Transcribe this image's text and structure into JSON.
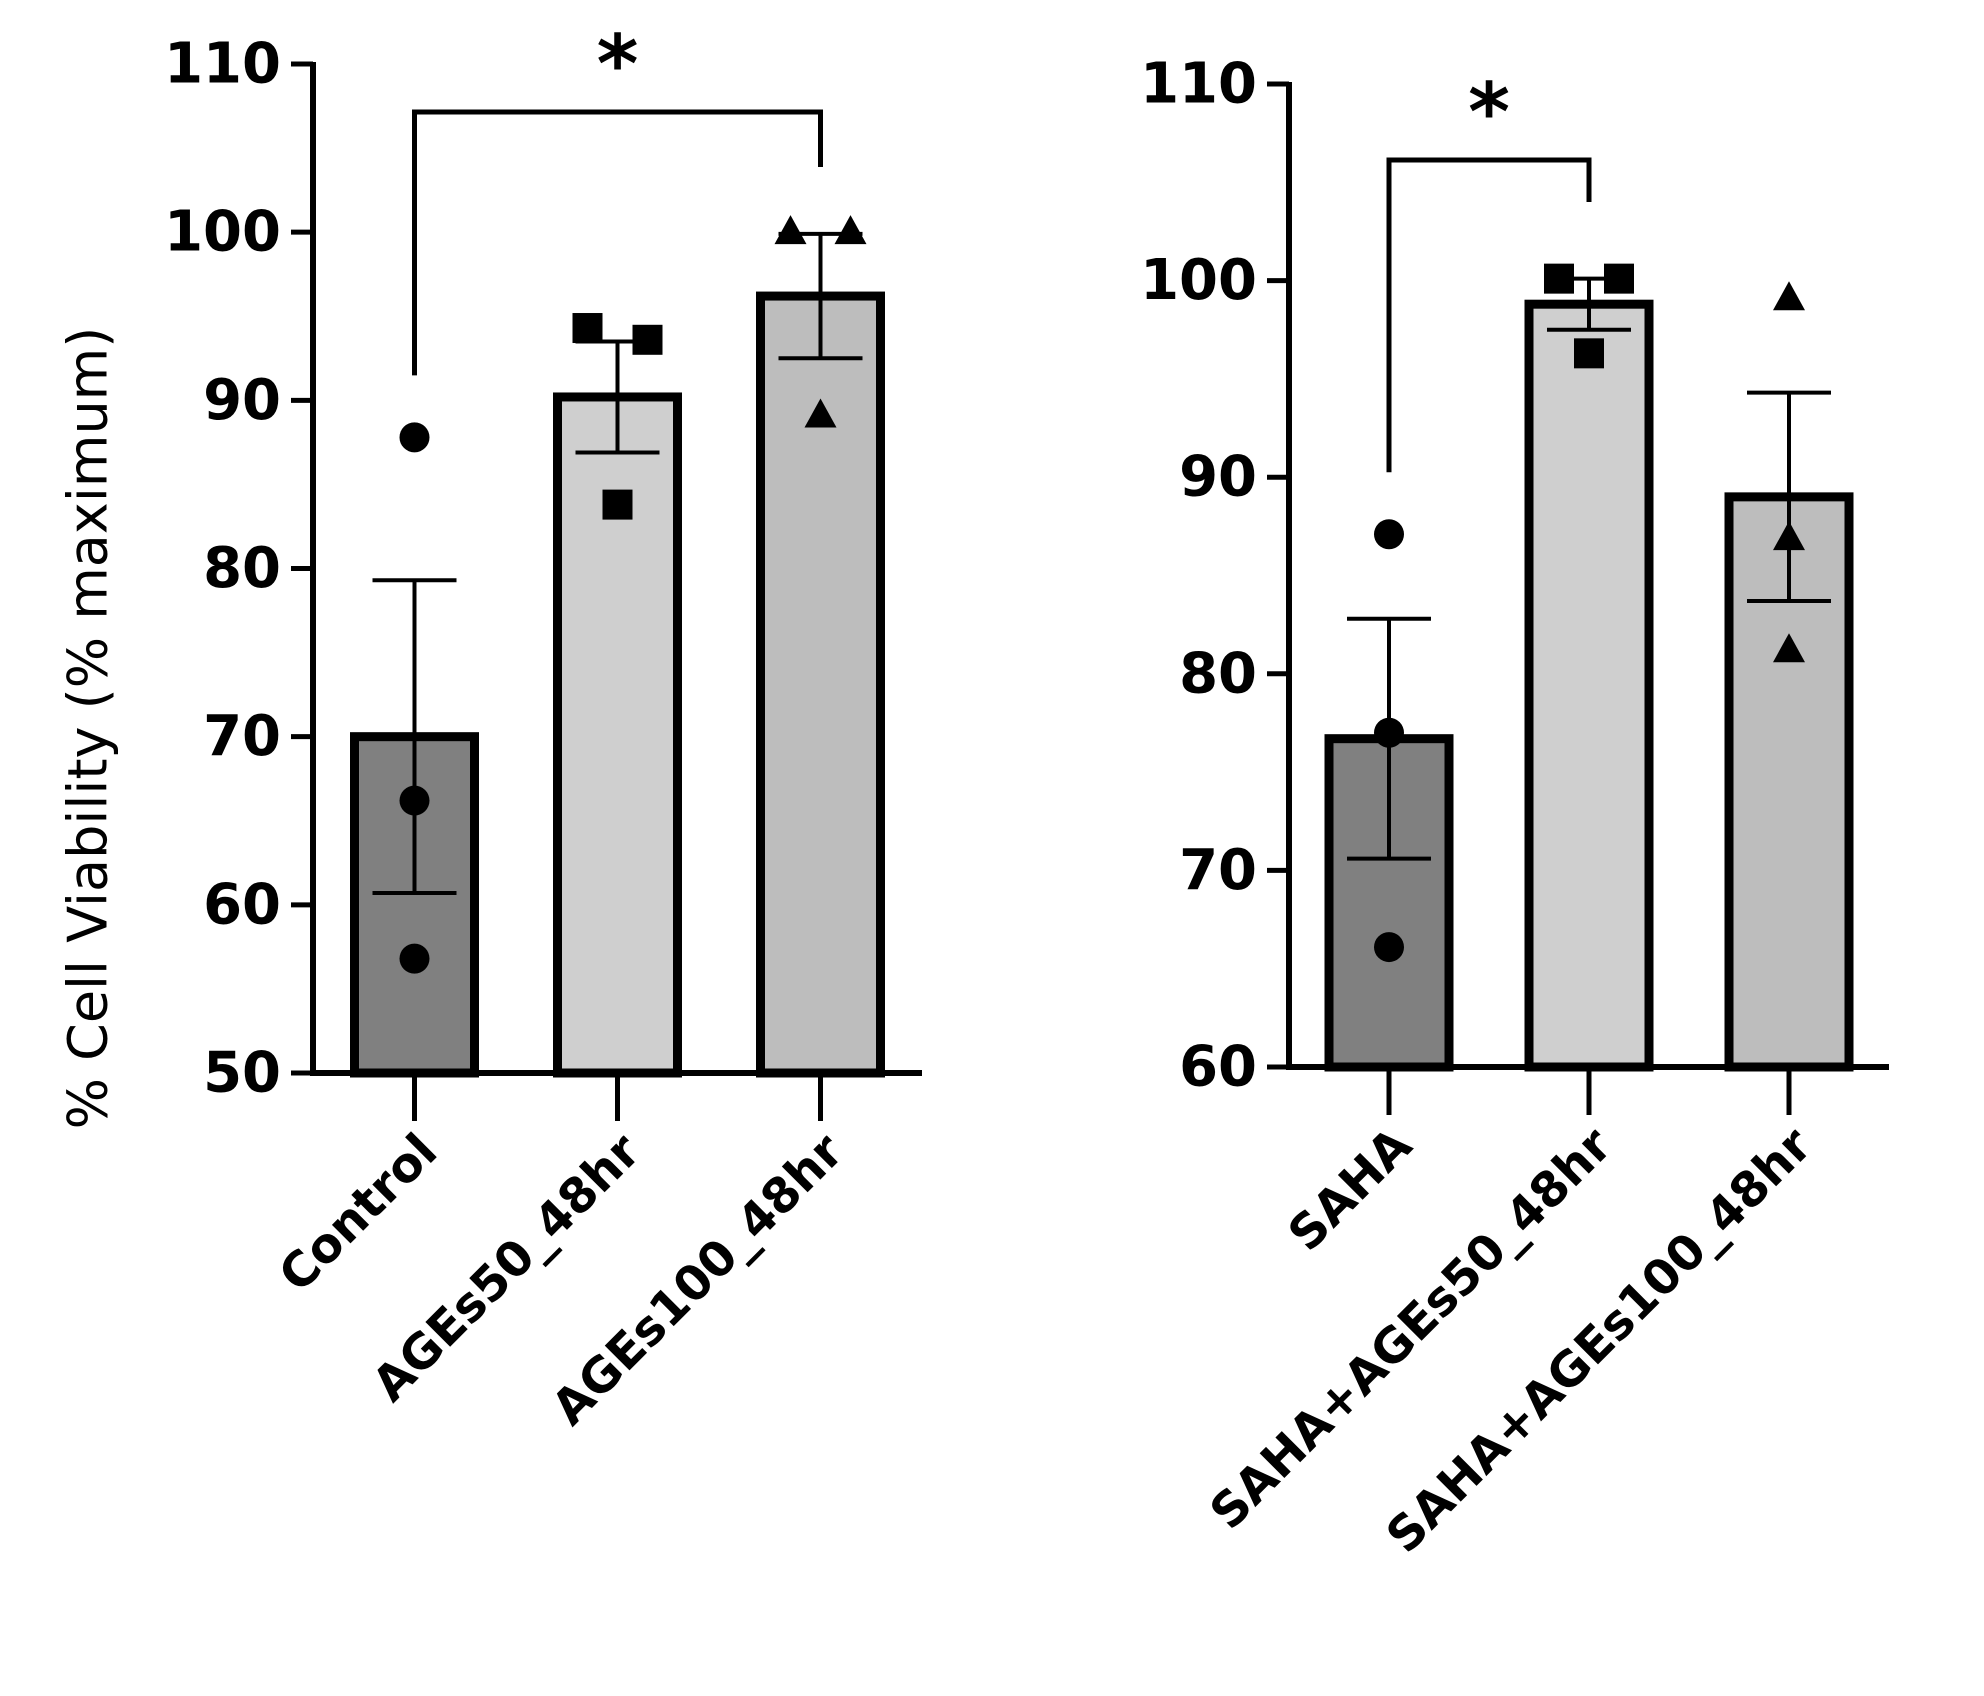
{
  "figure": {
    "ylabel": "% Cell Viability (% maximum)"
  },
  "chart_data": [
    {
      "type": "bar",
      "title": "",
      "xlabel": "",
      "ylabel": "% Cell Viability (% maximum)",
      "ylim": [
        50,
        110
      ],
      "yticks": [
        50,
        60,
        70,
        80,
        90,
        100,
        110
      ],
      "categories": [
        "Control",
        "AGEs50_48hr",
        "AGEs100_48hr"
      ],
      "values": [
        70,
        90.2,
        96.2
      ],
      "errors": [
        9.3,
        3.3,
        3.7
      ],
      "bar_colors": [
        "#808080",
        "#cfcfcf",
        "#bdbdbd"
      ],
      "markers": [
        "circle",
        "square",
        "triangle"
      ],
      "points": [
        [
          87.8,
          66.2,
          56.8
        ],
        [
          94.3,
          93.6,
          83.8
        ],
        [
          100,
          100,
          89.1
        ]
      ],
      "significance": {
        "from": 0,
        "to": 2,
        "label": "*"
      }
    },
    {
      "type": "bar",
      "title": "",
      "xlabel": "",
      "ylabel": "",
      "ylim": [
        60,
        110
      ],
      "yticks": [
        60,
        70,
        80,
        90,
        100,
        110
      ],
      "categories": [
        "SAHA",
        "SAHA+AGEs50_48hr",
        "SAHA+AGEs100_48hr"
      ],
      "values": [
        76.7,
        98.8,
        89
      ],
      "errors": [
        6.1,
        1.3,
        5.3
      ],
      "bar_colors": [
        "#808080",
        "#cfcfcf",
        "#bdbdbd"
      ],
      "markers": [
        "circle",
        "square",
        "triangle"
      ],
      "points": [
        [
          87.1,
          77,
          66.1
        ],
        [
          100.1,
          100.1,
          96.3
        ],
        [
          99.1,
          86.9,
          81.2
        ]
      ],
      "significance": {
        "from": 0,
        "to": 1,
        "label": "*"
      }
    }
  ]
}
